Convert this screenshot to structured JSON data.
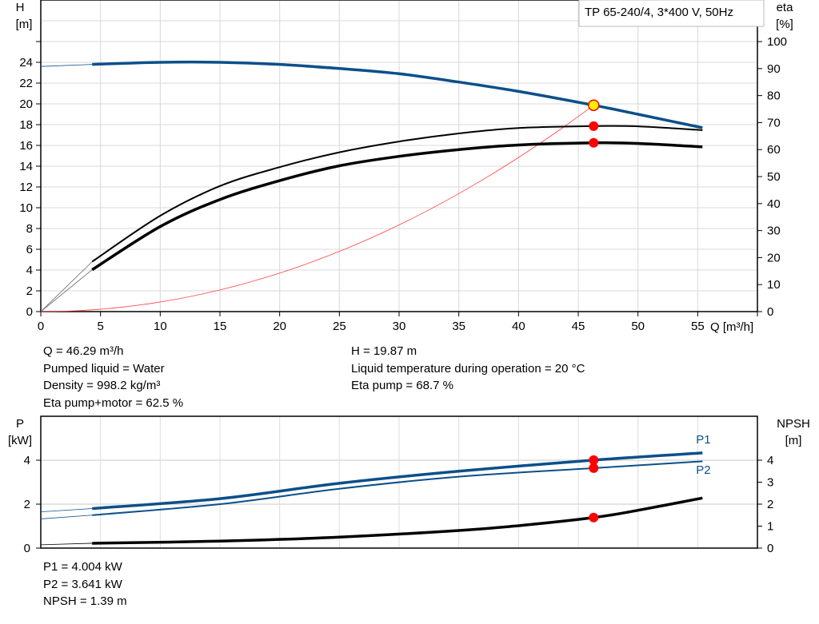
{
  "legend_box": "TP 65-240/4, 3*400 V, 50Hz",
  "chart_data": [
    {
      "type": "line",
      "xlabel": "Q [m³/h]",
      "ylabel": "H",
      "ylabel_unit": "[m]",
      "y2label": "eta",
      "y2label_unit": "[%]",
      "xlim": [
        0,
        60
      ],
      "ylim": [
        0,
        30
      ],
      "y2lim": [
        0,
        115.4
      ],
      "xticks": [
        0,
        5,
        10,
        15,
        20,
        25,
        30,
        35,
        40,
        45,
        50,
        55
      ],
      "yticks": [
        0,
        2,
        4,
        6,
        8,
        10,
        12,
        14,
        16,
        18,
        20,
        22,
        24
      ],
      "y2ticks": [
        0,
        10,
        20,
        30,
        40,
        50,
        60,
        70,
        80,
        90,
        100
      ],
      "grid": true,
      "colors": {
        "head": "#0b4f8a",
        "eta": "#000000",
        "system": "#ff4040",
        "marker": "#ff0000",
        "duty": "#ffee00"
      },
      "series": [
        {
          "id": "head",
          "axis": "left",
          "thin": [
            [
              0,
              23.6
            ],
            [
              4.3,
              23.8
            ]
          ],
          "points": [
            [
              4.3,
              23.8
            ],
            [
              10,
              24.0
            ],
            [
              15,
              24.0
            ],
            [
              20,
              23.8
            ],
            [
              25,
              23.4
            ],
            [
              30,
              22.9
            ],
            [
              35,
              22.1
            ],
            [
              40,
              21.2
            ],
            [
              46.29,
              19.87
            ],
            [
              50,
              19.0
            ],
            [
              55.4,
              17.7
            ]
          ]
        },
        {
          "id": "eta-pump",
          "axis": "right",
          "thin": [
            [
              0,
              0
            ],
            [
              4.3,
              18.5
            ]
          ],
          "points": [
            [
              4.3,
              18.5
            ],
            [
              10,
              35.5
            ],
            [
              15,
              46.5
            ],
            [
              20,
              53.5
            ],
            [
              25,
              59
            ],
            [
              30,
              63
            ],
            [
              35,
              66
            ],
            [
              40,
              68
            ],
            [
              46.29,
              68.7
            ],
            [
              50,
              68.6
            ],
            [
              55.4,
              67.2
            ]
          ]
        },
        {
          "id": "eta-pump-motor",
          "axis": "right",
          "thin": [
            [
              0,
              0
            ],
            [
              4.3,
              15.5
            ]
          ],
          "points": [
            [
              4.3,
              15.5
            ],
            [
              10,
              31.5
            ],
            [
              15,
              41.5
            ],
            [
              20,
              48.5
            ],
            [
              25,
              54
            ],
            [
              30,
              57.5
            ],
            [
              35,
              60
            ],
            [
              40,
              61.7
            ],
            [
              46.29,
              62.5
            ],
            [
              50,
              62.3
            ],
            [
              55.4,
              61
            ]
          ]
        }
      ],
      "system_curve": {
        "q": 46.29,
        "h": 19.87
      },
      "duty_point": {
        "q": 46.29,
        "h": 19.87,
        "eta_pump": 68.7,
        "eta_pump_motor": 62.5
      }
    },
    {
      "type": "line",
      "xlim": [
        0,
        60
      ],
      "ylabel": "P",
      "ylabel_unit": "[kW]",
      "y2label": "NPSH",
      "y2label_unit": "[m]",
      "ylim": [
        0,
        6
      ],
      "y2lim": [
        0,
        6
      ],
      "yticks": [
        0,
        2,
        4
      ],
      "y2ticks": [
        0,
        1,
        2,
        3,
        4
      ],
      "grid": true,
      "colors": {
        "p": "#0b4f8a",
        "npsh": "#000000",
        "marker": "#ff0000"
      },
      "series": [
        {
          "id": "P1",
          "name": "P1",
          "thin": [
            [
              0,
              1.65
            ],
            [
              4.3,
              1.8
            ]
          ],
          "points": [
            [
              4.3,
              1.8
            ],
            [
              15,
              2.25
            ],
            [
              25,
              2.95
            ],
            [
              35,
              3.5
            ],
            [
              46.29,
              4.004
            ],
            [
              55.4,
              4.33
            ]
          ]
        },
        {
          "id": "P2",
          "name": "P2",
          "thin": [
            [
              0,
              1.33
            ],
            [
              4.3,
              1.5
            ]
          ],
          "points": [
            [
              4.3,
              1.5
            ],
            [
              15,
              2.0
            ],
            [
              25,
              2.7
            ],
            [
              35,
              3.25
            ],
            [
              46.29,
              3.641
            ],
            [
              55.4,
              3.95
            ]
          ]
        },
        {
          "id": "NPSH",
          "thin": [
            [
              0,
              0.15
            ],
            [
              4.3,
              0.22
            ]
          ],
          "points": [
            [
              4.3,
              0.22
            ],
            [
              15,
              0.32
            ],
            [
              25,
              0.5
            ],
            [
              35,
              0.8
            ],
            [
              40,
              1.02
            ],
            [
              46.29,
              1.39
            ],
            [
              50,
              1.72
            ],
            [
              55.4,
              2.28
            ]
          ]
        }
      ],
      "duty_point": {
        "q": 46.29,
        "p1": 4.004,
        "p2": 3.641,
        "npsh": 1.39
      }
    }
  ],
  "info_top_left": [
    "Q = 46.29 m³/h",
    "Pumped liquid = Water",
    "Density = 998.2 kg/m³",
    "Eta pump+motor = 62.5 %"
  ],
  "info_top_right": [
    "H = 19.87 m",
    "Liquid temperature during operation = 20 °C",
    "Eta pump = 68.7 %"
  ],
  "info_bottom": [
    "P1 = 4.004 kW",
    "P2 = 3.641 kW",
    "NPSH = 1.39 m"
  ]
}
